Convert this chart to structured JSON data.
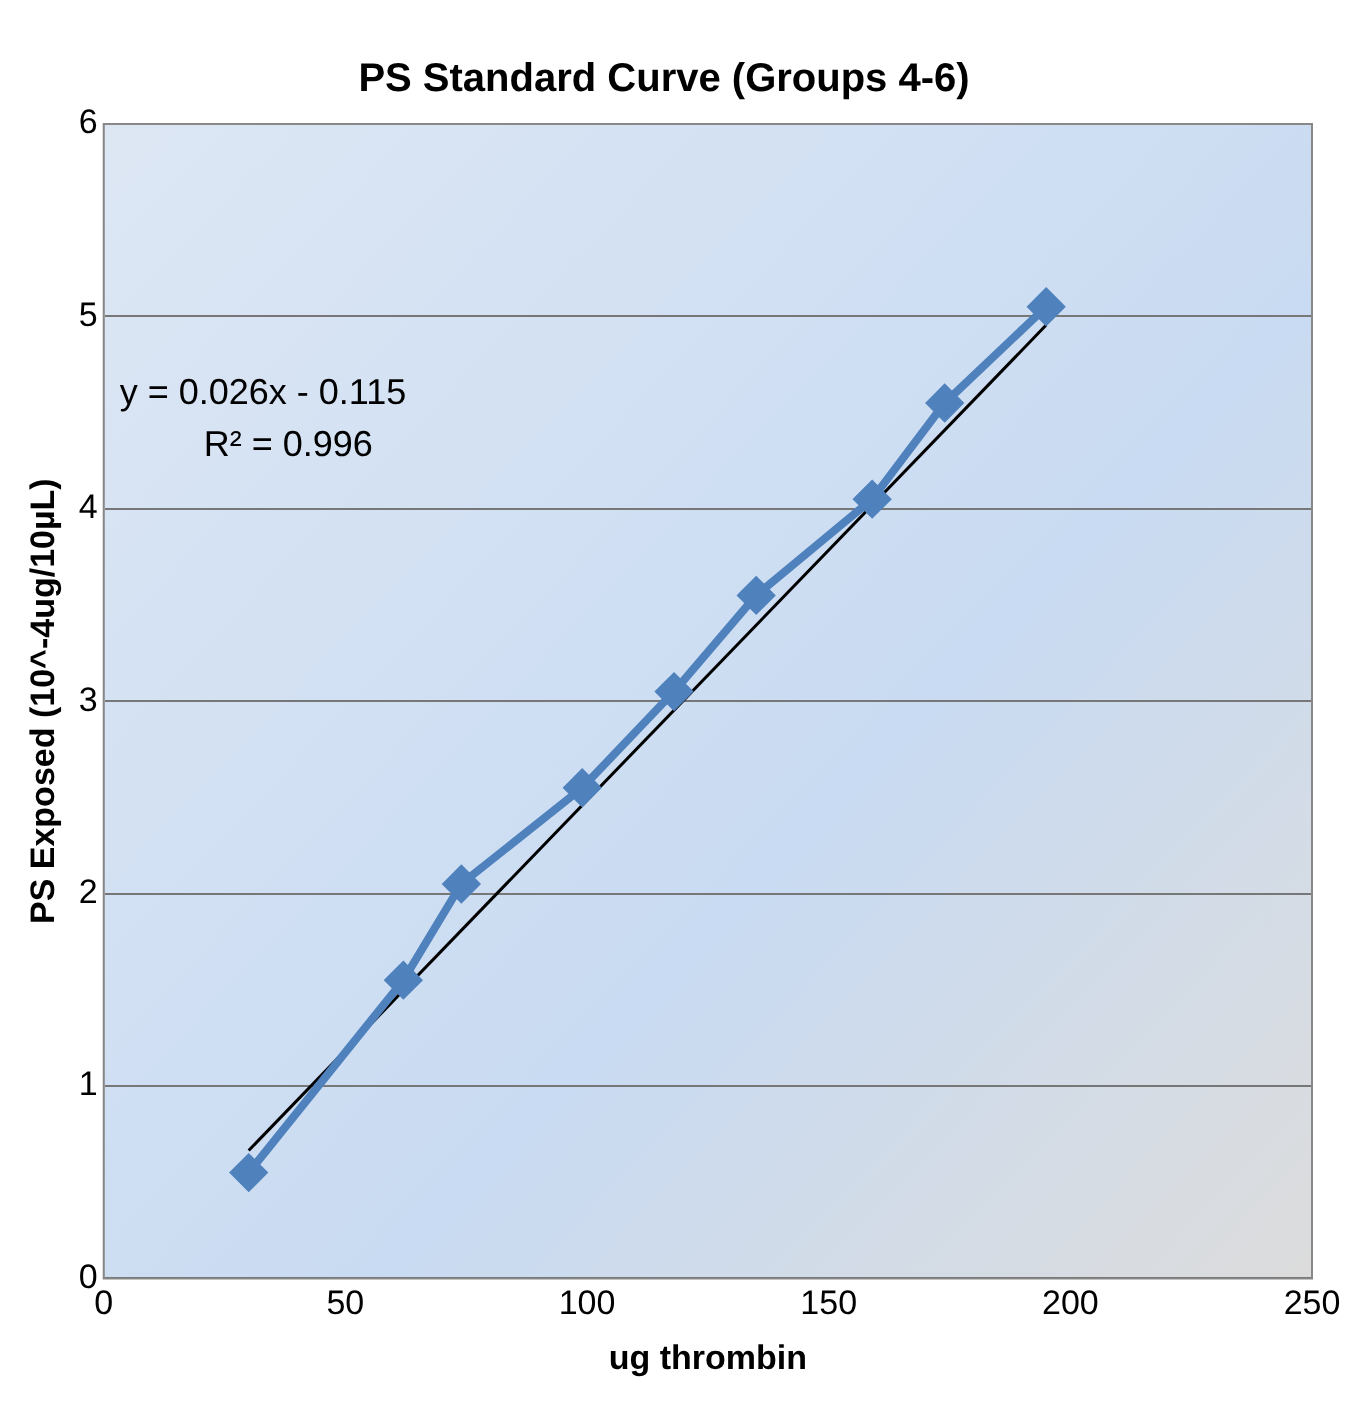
{
  "chart_data": {
    "type": "line",
    "title": "PS Standard Curve (Groups 4-6)",
    "xlabel": "ug thrombin",
    "ylabel": "PS Exposed (10^-4ug/10µL)",
    "x": [
      30,
      62,
      74,
      99,
      118,
      135,
      159,
      174,
      195
    ],
    "series": [
      {
        "color": "#4f81bd",
        "values": [
          0.55,
          1.55,
          2.05,
          2.55,
          3.05,
          3.55,
          4.05,
          4.55,
          5.05
        ],
        "marker": "diamond"
      },
      {
        "type": "line",
        "color": "#000000",
        "x": [
          30,
          195
        ],
        "values": [
          0.665,
          4.955
        ],
        "marker": "none"
      }
    ],
    "xlim": [
      0,
      250
    ],
    "xticks": [
      0,
      50,
      100,
      150,
      200,
      250
    ],
    "ylim": [
      0,
      6
    ],
    "yticks": [
      0,
      1,
      2,
      3,
      4,
      5,
      6
    ],
    "grid": "y",
    "legend": false,
    "annotations": [
      "y = 0.026x - 0.115",
      "R² = 0.996"
    ]
  }
}
